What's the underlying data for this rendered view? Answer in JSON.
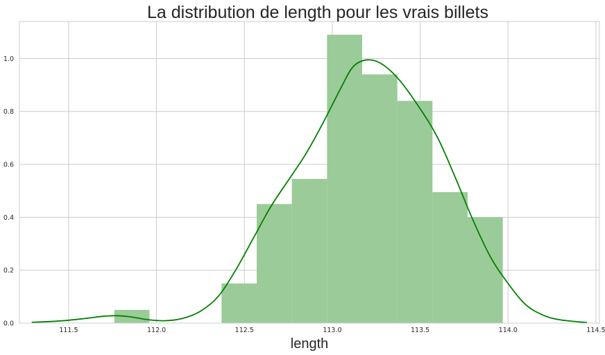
{
  "chart_data": {
    "type": "histogram",
    "title": "La distribution de length pour les vrais billets",
    "xlabel": "length",
    "ylabel": "",
    "xlim": [
      111.22,
      114.52
    ],
    "ylim": [
      0,
      1.14
    ],
    "xticks": [
      111.5,
      112.0,
      112.5,
      113.0,
      113.5,
      114.0,
      114.5
    ],
    "xtick_labels": [
      "111.5",
      "112.0",
      "112.5",
      "113.0",
      "113.5",
      "114.0",
      "114.5"
    ],
    "yticks": [
      0.0,
      0.2,
      0.4,
      0.6,
      0.8,
      1.0
    ],
    "ytick_labels": [
      "0.0",
      "0.2",
      "0.4",
      "0.6",
      "0.8",
      "1.0"
    ],
    "grid": true,
    "bars": [
      {
        "x0": 111.76,
        "x1": 111.96,
        "density": 0.05
      },
      {
        "x0": 112.37,
        "x1": 112.57,
        "density": 0.15
      },
      {
        "x0": 112.57,
        "x1": 112.77,
        "density": 0.45
      },
      {
        "x0": 112.77,
        "x1": 112.97,
        "density": 0.545
      },
      {
        "x0": 112.97,
        "x1": 113.17,
        "density": 1.09
      },
      {
        "x0": 113.17,
        "x1": 113.37,
        "density": 0.94
      },
      {
        "x0": 113.37,
        "x1": 113.57,
        "density": 0.84
      },
      {
        "x0": 113.57,
        "x1": 113.77,
        "density": 0.495
      },
      {
        "x0": 113.77,
        "x1": 113.97,
        "density": 0.4
      }
    ],
    "kde": {
      "x": [
        111.29,
        111.45,
        111.6,
        111.7,
        111.77,
        111.85,
        111.95,
        112.05,
        112.15,
        112.25,
        112.35,
        112.45,
        112.55,
        112.65,
        112.75,
        112.85,
        112.95,
        113.05,
        113.12,
        113.2,
        113.28,
        113.38,
        113.5,
        113.6,
        113.7,
        113.8,
        113.9,
        114.0,
        114.1,
        114.2,
        114.3,
        114.45
      ],
      "y": [
        0.003,
        0.008,
        0.018,
        0.026,
        0.028,
        0.024,
        0.013,
        0.009,
        0.018,
        0.045,
        0.1,
        0.2,
        0.32,
        0.44,
        0.54,
        0.64,
        0.76,
        0.89,
        0.97,
        0.995,
        0.98,
        0.92,
        0.81,
        0.7,
        0.55,
        0.39,
        0.25,
        0.15,
        0.07,
        0.03,
        0.012,
        0.002
      ]
    },
    "colors": {
      "bar_fill": "#9bcb98",
      "kde_line": "#008000",
      "grid": "#cccccc",
      "axes_border": "#cccccc"
    }
  }
}
